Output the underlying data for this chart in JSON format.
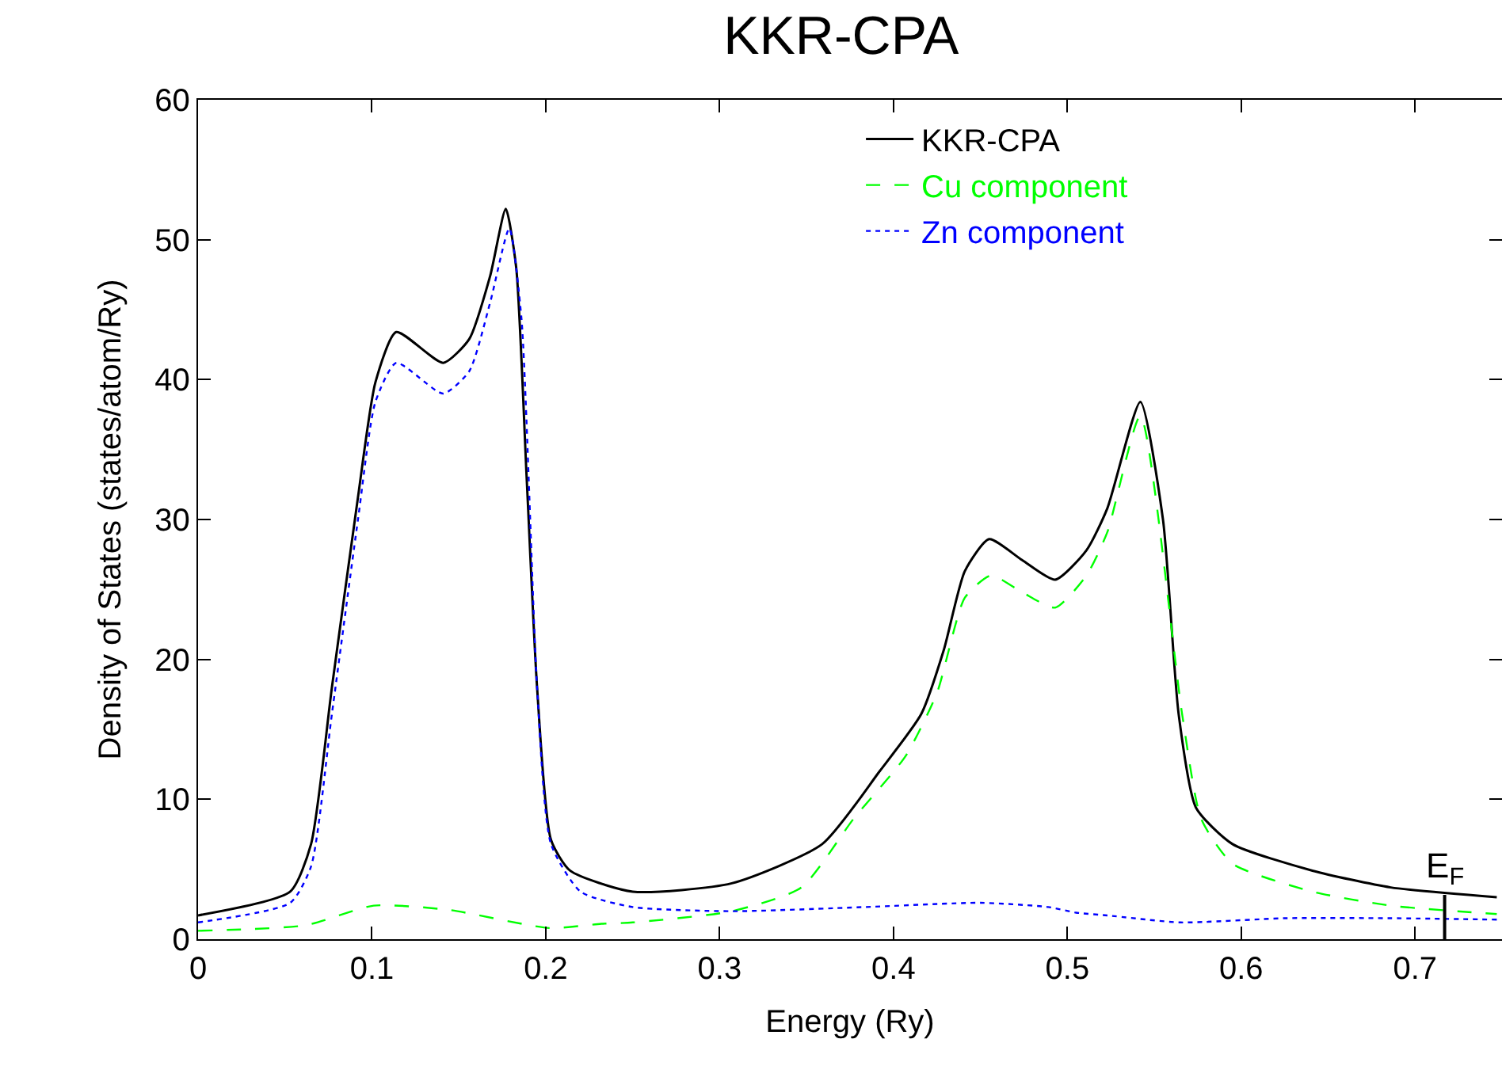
{
  "chart_data": {
    "type": "line",
    "title": "KKR-CPA",
    "xlabel": "Energy (Ry)",
    "ylabel": "Density of States (states/atom/Ry)",
    "xlim": [
      0,
      0.75
    ],
    "xticks": [
      0,
      0.1,
      0.2,
      0.3,
      0.4,
      0.5,
      0.6,
      0.7
    ],
    "ylim": [
      0,
      60
    ],
    "yticks": [
      0,
      10,
      20,
      30,
      40,
      50,
      60
    ],
    "legend": "top right",
    "marker": "none",
    "ref_lines": [
      {
        "axis": "x",
        "value": 0.717,
        "label": "E$_{F}$",
        "color": "#000000"
      }
    ],
    "series": [
      {
        "name": "KKR-CPA",
        "color": "#000000",
        "line_style": "solid",
        "x": [
          0,
          0.053,
          0.065,
          0.077,
          0.092,
          0.102,
          0.114,
          0.141,
          0.156,
          0.168,
          0.177,
          0.183,
          0.189,
          0.195,
          0.203,
          0.214,
          0.25,
          0.307,
          0.359,
          0.392,
          0.416,
          0.429,
          0.441,
          0.455,
          0.474,
          0.493,
          0.511,
          0.523,
          0.542,
          0.555,
          0.564,
          0.574,
          0.595,
          0.641,
          0.686,
          0.747
        ],
        "values": [
          1.7,
          3.4,
          6.8,
          18,
          31.6,
          39.8,
          43.4,
          41.2,
          42.9,
          47.4,
          52.2,
          48,
          33,
          18,
          7.1,
          4.9,
          3.4,
          4,
          6.8,
          12,
          16.1,
          20.7,
          26.3,
          28.6,
          27.1,
          25.7,
          27.8,
          30.8,
          38.4,
          30,
          16.1,
          9.4,
          6.8,
          4.9,
          3.7,
          3.0
        ]
      },
      {
        "name": "Cu component",
        "color": "#00ff00",
        "line_style": "dashed",
        "x": [
          0,
          0.062,
          0.101,
          0.144,
          0.202,
          0.232,
          0.25,
          0.307,
          0.347,
          0.377,
          0.407,
          0.425,
          0.441,
          0.456,
          0.474,
          0.493,
          0.511,
          0.523,
          0.542,
          0.566,
          0.577,
          0.595,
          0.641,
          0.686,
          0.747
        ],
        "values": [
          0.6,
          1.0,
          2.4,
          2.1,
          0.8,
          1.1,
          1.2,
          2.0,
          3.7,
          8.6,
          13.1,
          17.6,
          24.4,
          26,
          24.8,
          23.7,
          26,
          29.1,
          37.4,
          16.1,
          8.6,
          5.4,
          3.4,
          2.4,
          1.8
        ]
      },
      {
        "name": "Zn component",
        "color": "#0000ff",
        "line_style": "dotted",
        "x": [
          0,
          0.053,
          0.065,
          0.077,
          0.092,
          0.102,
          0.114,
          0.141,
          0.156,
          0.168,
          0.179,
          0.186,
          0.195,
          0.203,
          0.22,
          0.25,
          0.307,
          0.384,
          0.45,
          0.489,
          0.505,
          0.523,
          0.565,
          0.625,
          0.686,
          0.747
        ],
        "values": [
          1.2,
          2.6,
          5.2,
          16.1,
          30,
          38.4,
          41.2,
          39,
          40.6,
          45.5,
          50.8,
          44.4,
          18,
          6.8,
          3.4,
          2.3,
          2.0,
          2.3,
          2.6,
          2.3,
          1.9,
          1.7,
          1.2,
          1.5,
          1.5,
          1.4
        ]
      }
    ]
  }
}
